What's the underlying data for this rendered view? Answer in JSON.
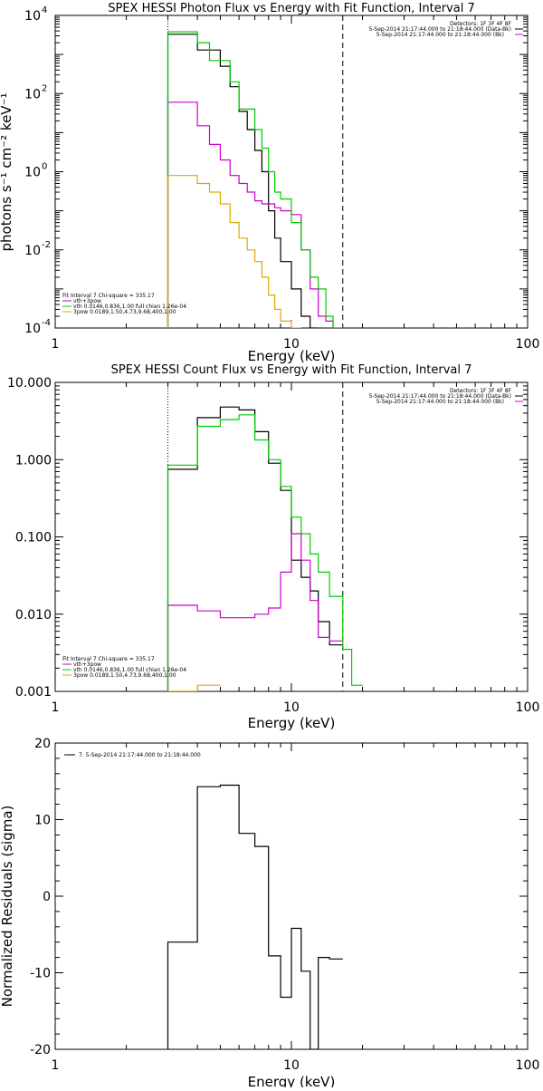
{
  "chart_data": [
    {
      "type": "line",
      "title": "SPEX HESSI Photon Flux vs Energy with Fit Function, Interval 7",
      "xlabel": "Energy (keV)",
      "ylabel": "photons s⁻¹ cm⁻² keV⁻¹",
      "xscale": "log",
      "yscale": "log",
      "xlim": [
        1,
        100
      ],
      "ylim": [
        0.0001,
        10000
      ],
      "xtick_labels": [
        "1",
        "10",
        "100"
      ],
      "ytick_labels": [
        {
          "base": "10",
          "exp": "4"
        },
        {
          "base": "10",
          "exp": "2"
        },
        {
          "base": "10",
          "exp": "0"
        },
        {
          "base": "10",
          "exp": "-2"
        },
        {
          "base": "10",
          "exp": "-4"
        }
      ],
      "vlines": [
        3.0,
        16.5
      ],
      "legend_top": [
        "Detectors: 1F 3F 4F 8F",
        "5-Sep-2014 21:17:44.000 to 21:18:44.000 (Data-Bk)",
        "5-Sep-2014 21:17:44.000 to 21:18:44.000 (Bk)"
      ],
      "legend_bottom": [
        "Fit Interval 7   Chi-square = 335.17",
        "vth+3pow",
        "vth 0.0146,0.836,1.00  full chian 1.26e-04",
        "3pow 0.0189,1.50,4.73,9.68,400,1.00"
      ],
      "bin_edges": [
        3.0,
        3.5,
        4.0,
        4.5,
        5.0,
        5.5,
        6.0,
        6.5,
        7.0,
        7.5,
        8.0,
        8.5,
        9.0,
        10.0,
        11.0,
        12.0,
        13.0,
        14.0,
        15.0,
        16.5,
        18.0
      ],
      "series": [
        {
          "name": "5-Sep-2014 21:17:44.000 to 21:18:44.000 (Data-Bk)",
          "color": "#000000",
          "values": [
            3300,
            3300,
            1300,
            1300,
            500,
            150,
            35,
            12,
            3.5,
            1.0,
            0.1,
            0.02,
            0.005,
            0.001,
            0.0002,
            0.0001,
            null,
            null,
            null,
            null
          ]
        },
        {
          "name": "vth+3pow",
          "color": "#cc00cc",
          "values": [
            60,
            60,
            15,
            5,
            2,
            0.8,
            0.5,
            0.3,
            0.18,
            0.15,
            0.15,
            0.12,
            0.1,
            0.08,
            0.01,
            0.001,
            0.0002,
            0.00015,
            0.0001,
            null
          ]
        },
        {
          "name": "vth 0.0146,0.836,1.00  full chian 1.26e-04",
          "color": "#00cc00",
          "values": [
            3800,
            3800,
            2000,
            700,
            700,
            200,
            40,
            40,
            12,
            4,
            1.0,
            0.3,
            0.2,
            0.05,
            0.01,
            0.002,
            0.001,
            0.0002,
            0.0001,
            null
          ]
        },
        {
          "name": "3pow 0.0189,1.50,4.73,9.68,400,1.00",
          "color": "#ddaa00",
          "values": [
            0.8,
            0.8,
            0.5,
            0.3,
            0.15,
            0.05,
            0.02,
            0.01,
            0.005,
            0.002,
            0.0007,
            0.0003,
            0.00015,
            0.0001,
            null,
            null,
            null,
            null,
            null,
            null
          ]
        }
      ]
    },
    {
      "type": "line",
      "title": "SPEX HESSI Count Flux vs Energy with Fit Function, Interval 7",
      "xlabel": "Energy (keV)",
      "ylabel": "",
      "xscale": "log",
      "yscale": "log",
      "xlim": [
        1,
        100
      ],
      "ylim": [
        0.001,
        10
      ],
      "xtick_labels": [
        "1",
        "10",
        "100"
      ],
      "ytick_labels": [
        "10.000",
        "1.000",
        "0.100",
        "0.010",
        "0.001"
      ],
      "vlines": [
        3.0,
        16.5
      ],
      "legend_top": [
        "Detectors: 1F 3F 4F 8F",
        "5-Sep-2014 21:17:44.000 to 21:18:44.000 (Data-Bk)",
        "5-Sep-2014 21:17:44.000 to 21:18:44.000 (Bk)"
      ],
      "legend_bottom": [
        "Fit Interval 7   Chi-square = 335.17",
        "vth+3pow",
        "vth 0.0146,0.836,1.00  full chian 1.26e-04",
        "3pow 0.0189,1.50,4.73,9.68,400,1.00"
      ],
      "bin_edges": [
        3.0,
        4.0,
        5.0,
        6.0,
        7.0,
        8.0,
        9.0,
        10.0,
        11.0,
        12.0,
        13.0,
        14.5,
        16.5,
        18.0,
        20.0
      ],
      "series": [
        {
          "name": "5-Sep-2014 21:17:44.000 to 21:18:44.000 (Data-Bk)",
          "color": "#000000",
          "values": [
            0.75,
            3.5,
            4.8,
            4.4,
            2.3,
            0.9,
            0.4,
            0.05,
            0.03,
            0.02,
            0.008,
            0.004,
            null,
            null
          ]
        },
        {
          "name": "vth+3pow",
          "color": "#cc00cc",
          "values": [
            0.013,
            0.011,
            0.009,
            0.009,
            0.01,
            0.012,
            0.035,
            0.11,
            0.05,
            0.015,
            0.005,
            0.0045,
            null,
            null
          ]
        },
        {
          "name": "vth 0.0146,0.836,1.00  full chian 1.26e-04",
          "color": "#00cc00",
          "values": [
            0.85,
            2.7,
            3.3,
            3.8,
            1.8,
            1.0,
            0.45,
            0.18,
            0.11,
            0.06,
            0.035,
            0.017,
            0.0035,
            0.0012
          ]
        },
        {
          "name": "3pow 0.0189,1.50,4.73,9.68,400,1.00",
          "color": "#ddaa00",
          "values": [
            0.001,
            0.0012,
            null,
            null,
            null,
            null,
            null,
            null,
            null,
            null,
            null,
            null,
            null,
            null
          ]
        }
      ]
    },
    {
      "type": "line",
      "title": "",
      "xlabel": "Energy (keV)",
      "ylabel": "Normalized Residuals (sigma)",
      "xscale": "log",
      "yscale": "linear",
      "xlim": [
        1,
        100
      ],
      "ylim": [
        -20,
        20
      ],
      "xtick_labels": [
        "1",
        "10",
        "100"
      ],
      "ytick_labels": [
        "20",
        "10",
        "0",
        "-10",
        "-20"
      ],
      "legend": [
        "7. 5-Sep-2014 21:17:44.000 to 21:18:44.000"
      ],
      "bin_edges": [
        3.0,
        4.0,
        5.0,
        6.0,
        7.0,
        8.0,
        9.0,
        10.0,
        11.0,
        12.0,
        13.0,
        14.5,
        16.5
      ],
      "series": [
        {
          "name": "7. 5-Sep-2014 21:17:44.000 to 21:18:44.000",
          "color": "#000000",
          "values": [
            -6,
            14.3,
            14.5,
            8.2,
            6.5,
            -7.8,
            -13.2,
            -4.2,
            -9.8,
            -20,
            -8,
            -8.2
          ]
        }
      ]
    }
  ]
}
